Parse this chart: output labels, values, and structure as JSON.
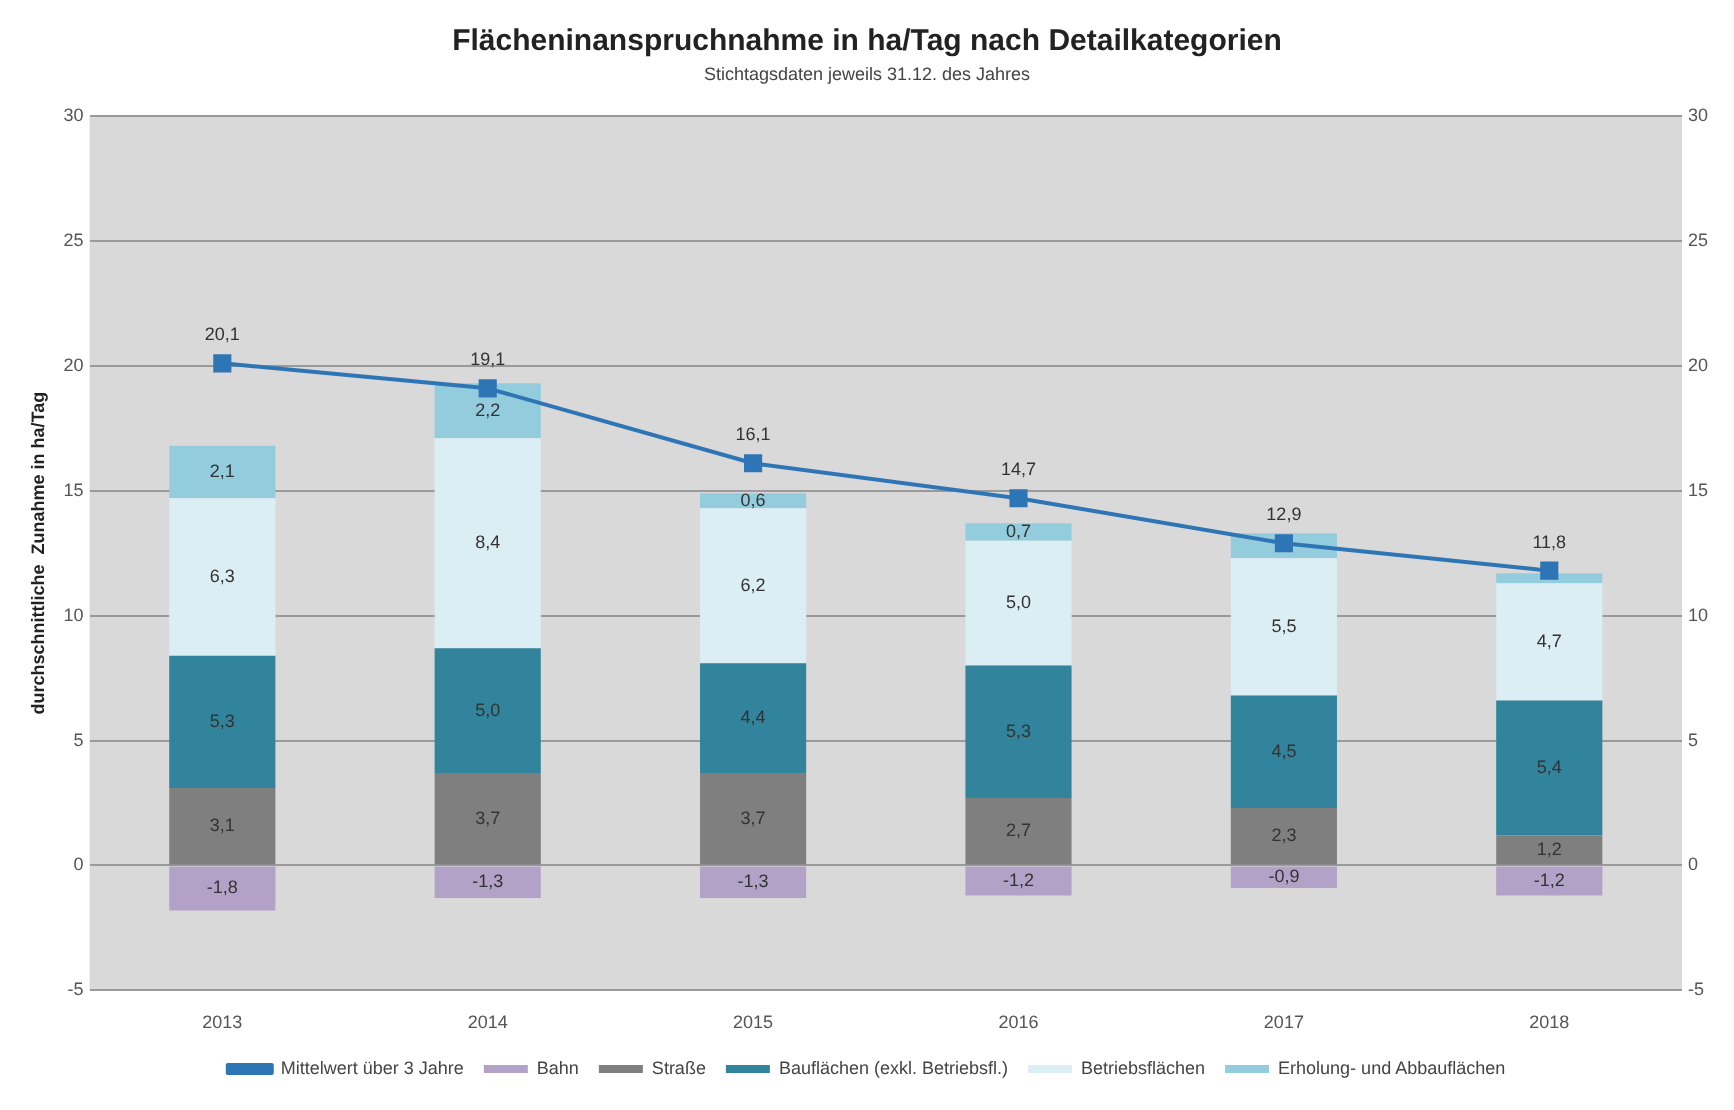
{
  "chart_data": {
    "type": "bar",
    "title": "Flächeninanspruchnahme  in ha/Tag  nach Detailkategorien",
    "subtitle": "Stichtagsdaten jeweils 31.12. des Jahres",
    "ylabel": "durchschnittliche  Zunahme in ha/Tag",
    "categories": [
      "2013",
      "2014",
      "2015",
      "2016",
      "2017",
      "2018"
    ],
    "stacked": true,
    "series": [
      {
        "name": "Bahn",
        "color": "#b3a2c7",
        "values": [
          -1.8,
          -1.3,
          -1.3,
          -1.2,
          -0.9,
          -1.2
        ],
        "value_labels": [
          "-1,8",
          "-1,3",
          "-1,3",
          "-1,2",
          "-0,9",
          "-1,2"
        ]
      },
      {
        "name": "Straße",
        "color": "#7f7f7f",
        "values": [
          3.1,
          3.7,
          3.7,
          2.7,
          2.3,
          1.2
        ],
        "value_labels": [
          "3,1",
          "3,7",
          "3,7",
          "2,7",
          "2,3",
          "1,2"
        ]
      },
      {
        "name": "Bauflächen (exkl. Betriebsfl.)",
        "color": "#31849b",
        "values": [
          5.3,
          5.0,
          4.4,
          5.3,
          4.5,
          5.4
        ],
        "value_labels": [
          "5,3",
          "5,0",
          "4,4",
          "5,3",
          "4,5",
          "5,4"
        ]
      },
      {
        "name": "Betriebsflächen",
        "color": "#dbeef4",
        "values": [
          6.3,
          8.4,
          6.2,
          5.0,
          5.5,
          4.7
        ],
        "value_labels": [
          "6,3",
          "8,4",
          "6,2",
          "5,0",
          "5,5",
          "4,7"
        ]
      },
      {
        "name": "Erholung- und Abbauflächen",
        "color": "#93cddd",
        "values": [
          2.1,
          2.2,
          0.6,
          0.7,
          1.0,
          0.4
        ],
        "value_labels": [
          "2,1",
          "2,2",
          "0,6",
          "0,7",
          null,
          null
        ]
      },
      {
        "name": "Mittelwert über 3 Jahre",
        "type": "line",
        "color": "#2e75b6",
        "marker": "square",
        "values": [
          20.1,
          19.1,
          16.1,
          14.7,
          12.9,
          11.8
        ],
        "value_labels": [
          "20,1",
          "19,1",
          "16,1",
          "14,7",
          "12,9",
          "11,8"
        ]
      }
    ],
    "ylim": [
      -5,
      30
    ],
    "yticks": [
      -5,
      0,
      5,
      10,
      15,
      20,
      25,
      30
    ],
    "y2lim": [
      -5,
      30
    ],
    "y2ticks": [
      -5,
      0,
      5,
      10,
      15,
      20,
      25,
      30
    ],
    "grid": "y",
    "legend": "bottom"
  }
}
